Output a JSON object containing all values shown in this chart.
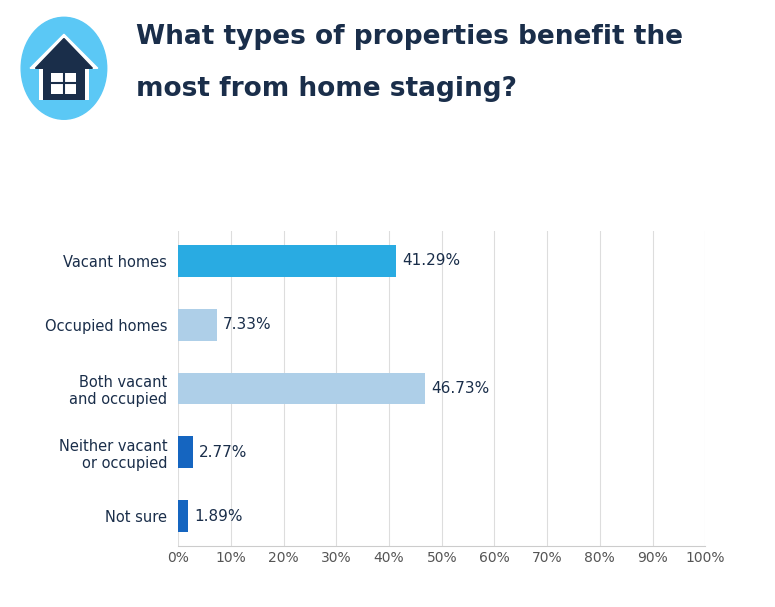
{
  "categories": [
    "Vacant homes",
    "Occupied homes",
    "Both vacant\nand occupied",
    "Neither vacant\nor occupied",
    "Not sure"
  ],
  "values": [
    41.29,
    7.33,
    46.73,
    2.77,
    1.89
  ],
  "bar_colors": [
    "#29ABE2",
    "#AECFE8",
    "#AECFE8",
    "#1565C0",
    "#1565C0"
  ],
  "label_texts": [
    "41.29%",
    "7.33%",
    "46.73%",
    "2.77%",
    "1.89%"
  ],
  "title_line1": "What types of properties benefit the",
  "title_line2": "most from home staging?",
  "title_color": "#1a2e4a",
  "title_fontsize": 19,
  "label_fontsize": 11,
  "tick_fontsize": 10,
  "category_fontsize": 10.5,
  "xlim": [
    0,
    100
  ],
  "xticks": [
    0,
    10,
    20,
    30,
    40,
    50,
    60,
    70,
    80,
    90,
    100
  ],
  "xtick_labels": [
    "0%",
    "10%",
    "20%",
    "30%",
    "40%",
    "50%",
    "60%",
    "70%",
    "80%",
    "90%",
    "100%"
  ],
  "background_color": "#ffffff",
  "grid_color": "#dddddd",
  "bar_height": 0.5
}
